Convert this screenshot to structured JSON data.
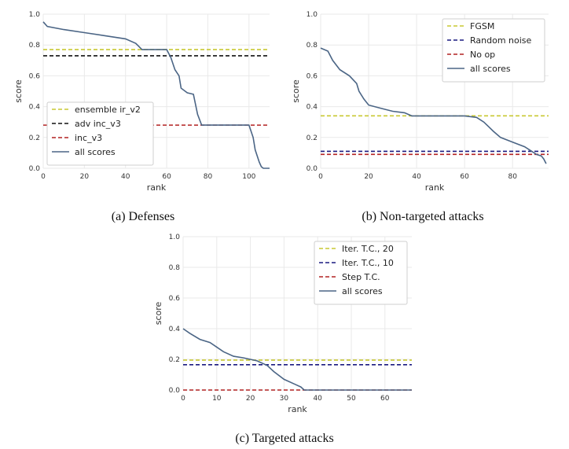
{
  "colors": {
    "yellow": "#c8c832",
    "navy": "#1a1a80",
    "red": "#b22222",
    "black": "#111111",
    "steel": "#4b6585"
  },
  "chart_data": [
    {
      "type": "line",
      "caption": "(a) Defenses",
      "xlabel": "rank",
      "ylabel": "score",
      "xlim": [
        0,
        110
      ],
      "ylim": [
        0,
        1.0
      ],
      "xticks": [
        0,
        20,
        40,
        60,
        80,
        100
      ],
      "yticks": [
        0.0,
        0.2,
        0.4,
        0.6,
        0.8,
        1.0
      ],
      "legend_position": "lower-left",
      "series": [
        {
          "name": "ensemble ir_v2",
          "kind": "hline",
          "color": "yellow",
          "y": 0.77
        },
        {
          "name": "adv inc_v3",
          "kind": "hline",
          "color": "black",
          "y": 0.73
        },
        {
          "name": "inc_v3",
          "kind": "hline",
          "color": "red",
          "y": 0.28
        },
        {
          "name": "all scores",
          "kind": "curve",
          "color": "steel",
          "x": [
            0,
            2,
            10,
            20,
            30,
            40,
            45,
            48,
            52,
            55,
            60,
            62,
            64,
            66,
            67,
            70,
            73,
            75,
            77,
            80,
            90,
            100,
            102,
            103,
            105,
            106,
            107,
            110
          ],
          "y": [
            0.95,
            0.92,
            0.9,
            0.88,
            0.86,
            0.84,
            0.81,
            0.77,
            0.77,
            0.77,
            0.77,
            0.72,
            0.64,
            0.6,
            0.52,
            0.49,
            0.48,
            0.35,
            0.28,
            0.28,
            0.28,
            0.28,
            0.2,
            0.12,
            0.04,
            0.01,
            0.0,
            0.0
          ]
        }
      ]
    },
    {
      "type": "line",
      "caption": "(b) Non-targeted attacks",
      "xlabel": "rank",
      "ylabel": "score",
      "xlim": [
        0,
        95
      ],
      "ylim": [
        0,
        1.0
      ],
      "xticks": [
        0,
        20,
        40,
        60,
        80
      ],
      "yticks": [
        0.0,
        0.2,
        0.4,
        0.6,
        0.8,
        1.0
      ],
      "legend_position": "top-right",
      "series": [
        {
          "name": "FGSM",
          "kind": "hline",
          "color": "yellow",
          "y": 0.34
        },
        {
          "name": "Random noise",
          "kind": "hline",
          "color": "navy",
          "y": 0.11
        },
        {
          "name": "No op",
          "kind": "hline",
          "color": "red",
          "y": 0.09
        },
        {
          "name": "all scores",
          "kind": "curve",
          "color": "steel",
          "x": [
            0,
            3,
            5,
            8,
            12,
            15,
            16,
            18,
            20,
            25,
            30,
            35,
            38,
            50,
            60,
            65,
            68,
            70,
            72,
            75,
            80,
            85,
            88,
            90,
            92,
            93,
            94
          ],
          "y": [
            0.78,
            0.76,
            0.7,
            0.64,
            0.6,
            0.55,
            0.5,
            0.45,
            0.41,
            0.39,
            0.37,
            0.36,
            0.34,
            0.34,
            0.34,
            0.33,
            0.3,
            0.27,
            0.24,
            0.2,
            0.17,
            0.14,
            0.11,
            0.09,
            0.08,
            0.06,
            0.03
          ]
        }
      ]
    },
    {
      "type": "line",
      "caption": "(c) Targeted attacks",
      "xlabel": "rank",
      "ylabel": "score",
      "xlim": [
        0,
        68
      ],
      "ylim": [
        0,
        1.0
      ],
      "xticks": [
        0,
        10,
        20,
        30,
        40,
        50,
        60
      ],
      "yticks": [
        0.0,
        0.2,
        0.4,
        0.6,
        0.8,
        1.0
      ],
      "legend_position": "top-right",
      "series": [
        {
          "name": "Iter. T.C., 20",
          "kind": "hline",
          "color": "yellow",
          "y": 0.195
        },
        {
          "name": "Iter. T.C., 10",
          "kind": "hline",
          "color": "navy",
          "y": 0.165
        },
        {
          "name": "Step T.C.",
          "kind": "hline",
          "color": "red",
          "y": 0.0
        },
        {
          "name": "all scores",
          "kind": "curve",
          "color": "steel",
          "x": [
            0,
            2,
            5,
            8,
            10,
            12,
            15,
            18,
            20,
            22,
            25,
            27,
            30,
            33,
            35,
            36,
            37,
            40,
            50,
            60,
            68
          ],
          "y": [
            0.4,
            0.37,
            0.33,
            0.31,
            0.28,
            0.25,
            0.22,
            0.21,
            0.2,
            0.19,
            0.16,
            0.12,
            0.07,
            0.04,
            0.02,
            0.0,
            0.0,
            0.0,
            0.0,
            0.0,
            0.0
          ]
        }
      ]
    }
  ]
}
